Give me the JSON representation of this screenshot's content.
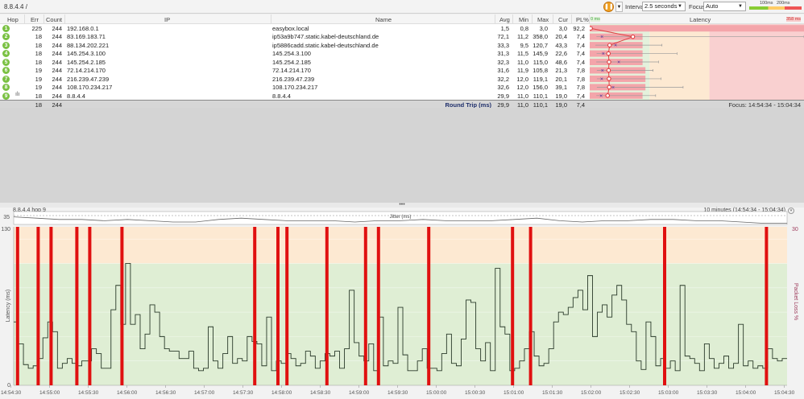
{
  "toolbar": {
    "title": "8.8.4.4 /",
    "pause_icon": "pause-icon",
    "interval_label": "Interval",
    "interval_value": "2.5 seconds",
    "focus_label": "Focus",
    "focus_value": "Auto",
    "legend_100": "100ms",
    "legend_200": "200ms",
    "legend_colors": [
      "#88cc33",
      "#ffcc66",
      "#ee5555"
    ]
  },
  "table": {
    "headers": {
      "hop": "Hop",
      "err": "Err",
      "count": "Count",
      "ip": "IP",
      "name": "Name",
      "avg": "Avg",
      "min": "Min",
      "max": "Max",
      "cur": "Cur",
      "pl": "PL%",
      "latency": "Latency",
      "lat_min": "0 ms",
      "lat_max": "358 ms"
    },
    "latency_scale_max_ms": 358,
    "pl_scale_max_pct": 30,
    "rows": [
      {
        "hop": "1",
        "err": "225",
        "count": "244",
        "ip": "192.168.0.1",
        "name": "easybox.local",
        "avg": "1,5",
        "min": "0,8",
        "max": "3,0",
        "cur": "3,0",
        "pl": "92,2"
      },
      {
        "hop": "2",
        "err": "18",
        "count": "244",
        "ip": "83.169.183.71",
        "name": "ip53a9b747.static.kabel-deutschland.de",
        "avg": "72,1",
        "min": "11,2",
        "max": "358,0",
        "cur": "20,4",
        "pl": "7,4"
      },
      {
        "hop": "3",
        "err": "18",
        "count": "244",
        "ip": "88.134.202.221",
        "name": "ip5886cadd.static.kabel-deutschland.de",
        "avg": "33,3",
        "min": "9,5",
        "max": "120,7",
        "cur": "43,3",
        "pl": "7,4"
      },
      {
        "hop": "4",
        "err": "18",
        "count": "244",
        "ip": "145.254.3.100",
        "name": "145.254.3.100",
        "avg": "31,3",
        "min": "11,5",
        "max": "145,9",
        "cur": "22,6",
        "pl": "7,4"
      },
      {
        "hop": "5",
        "err": "18",
        "count": "244",
        "ip": "145.254.2.185",
        "name": "145.254.2.185",
        "avg": "32,3",
        "min": "11,0",
        "max": "115,0",
        "cur": "48,6",
        "pl": "7,4"
      },
      {
        "hop": "6",
        "err": "19",
        "count": "244",
        "ip": "72.14.214.170",
        "name": "72.14.214.170",
        "avg": "31,6",
        "min": "11,9",
        "max": "105,8",
        "cur": "21,3",
        "pl": "7,8"
      },
      {
        "hop": "7",
        "err": "19",
        "count": "244",
        "ip": "216.239.47.239",
        "name": "216.239.47.239",
        "avg": "32,2",
        "min": "12,0",
        "max": "119,1",
        "cur": "20,1",
        "pl": "7,8"
      },
      {
        "hop": "8",
        "err": "19",
        "count": "244",
        "ip": "108.170.234.217",
        "name": "108.170.234.217",
        "avg": "32,6",
        "min": "12,0",
        "max": "156,0",
        "cur": "39,1",
        "pl": "7,8"
      },
      {
        "hop": "9",
        "err": "18",
        "count": "244",
        "ip": "8.8.4.4",
        "name": "8.8.4.4",
        "avg": "29,9",
        "min": "11,0",
        "max": "110,1",
        "cur": "19,0",
        "pl": "7,4"
      }
    ],
    "footer": {
      "err": "18",
      "count": "244",
      "label": "Round Trip (ms)",
      "avg": "29,9",
      "min": "11,0",
      "max": "110,1",
      "cur": "19,0",
      "pl": "7,4",
      "focus": "Focus: 14:54:34 - 15:04:34"
    }
  },
  "splitter": "•••",
  "graph": {
    "target_label": "8.8.4.4 hop 9",
    "range_label": "10 minutes (14:54:34 - 15:04:34)",
    "jitter_label": "Jitter (ms)",
    "jitter_tick": "35",
    "y_top": "130",
    "y_bottom": "0",
    "y_label": "Latency (ms)",
    "pl_top": "30",
    "pl_label": "Packet Loss %"
  },
  "chart_data": {
    "type": "line",
    "x_start": "14:54:34",
    "x_end": "15:04:34",
    "ylim": [
      0,
      130
    ],
    "y2lim": [
      0,
      30
    ],
    "zones": [
      {
        "from": 0,
        "to": 100,
        "color": "#dfeed4"
      },
      {
        "from": 100,
        "to": 130,
        "color": "#fde9d2"
      }
    ],
    "x_tick_labels": [
      "14:54:30",
      "14:55:00",
      "14:55:30",
      "14:56:00",
      "14:56:30",
      "14:57:00",
      "14:57:30",
      "14:58:00",
      "14:58:30",
      "14:59:00",
      "14:59:30",
      "15:00:00",
      "15:00:30",
      "15:01:00",
      "15:01:30",
      "15:02:00",
      "15:02:30",
      "15:03:00",
      "15:03:30",
      "15:04:00",
      "15:04:30"
    ],
    "latency_ms": [
      52,
      34,
      17,
      14,
      16,
      22,
      39,
      52,
      44,
      14,
      18,
      22,
      18,
      16,
      20,
      20,
      30,
      26,
      14,
      14,
      62,
      82,
      50,
      100,
      50,
      58,
      30,
      42,
      66,
      60,
      40,
      30,
      28,
      28,
      22,
      22,
      28,
      14,
      12,
      14,
      48,
      20,
      14,
      26,
      40,
      18,
      22,
      20,
      40,
      36,
      34,
      16,
      56,
      12,
      20,
      18,
      26,
      22,
      16,
      18,
      28,
      24,
      14,
      20,
      26,
      24,
      28,
      14,
      30,
      78,
      35,
      24,
      20,
      34,
      12,
      56,
      16,
      20,
      18,
      64,
      25,
      12,
      12,
      20,
      30,
      14,
      14,
      12,
      26,
      42,
      18,
      16,
      38,
      70,
      68,
      30,
      20,
      35,
      12,
      96,
      48,
      42,
      12,
      14,
      20,
      30,
      44,
      24,
      16,
      18,
      30,
      52,
      60,
      58,
      64,
      72,
      78,
      62,
      90,
      40,
      60,
      66,
      56,
      74,
      82,
      70,
      50,
      44,
      20,
      13,
      52,
      40,
      16,
      22,
      14,
      20,
      12,
      82,
      24,
      22,
      18,
      12,
      34,
      22,
      14,
      18,
      24,
      14,
      18,
      50,
      16,
      20,
      14,
      16,
      14,
      30,
      22,
      20,
      22
    ],
    "packet_loss_times": [
      "14:54:37",
      "14:54:53",
      "14:55:03",
      "14:55:23",
      "14:55:33",
      "14:55:58",
      "14:57:41",
      "14:57:59",
      "14:58:06",
      "14:58:37",
      "14:59:07",
      "14:59:17",
      "14:59:56",
      "15:01:01",
      "15:01:15",
      "15:02:59",
      "15:04:18"
    ],
    "jitter_ms": [
      34,
      33,
      32,
      32,
      31,
      32,
      31,
      30,
      30,
      32,
      33,
      32,
      31,
      31,
      31,
      30,
      31,
      31,
      32,
      31,
      31,
      31,
      32,
      33,
      31,
      30,
      31,
      31,
      32,
      32,
      31,
      31,
      30,
      29,
      29
    ]
  }
}
